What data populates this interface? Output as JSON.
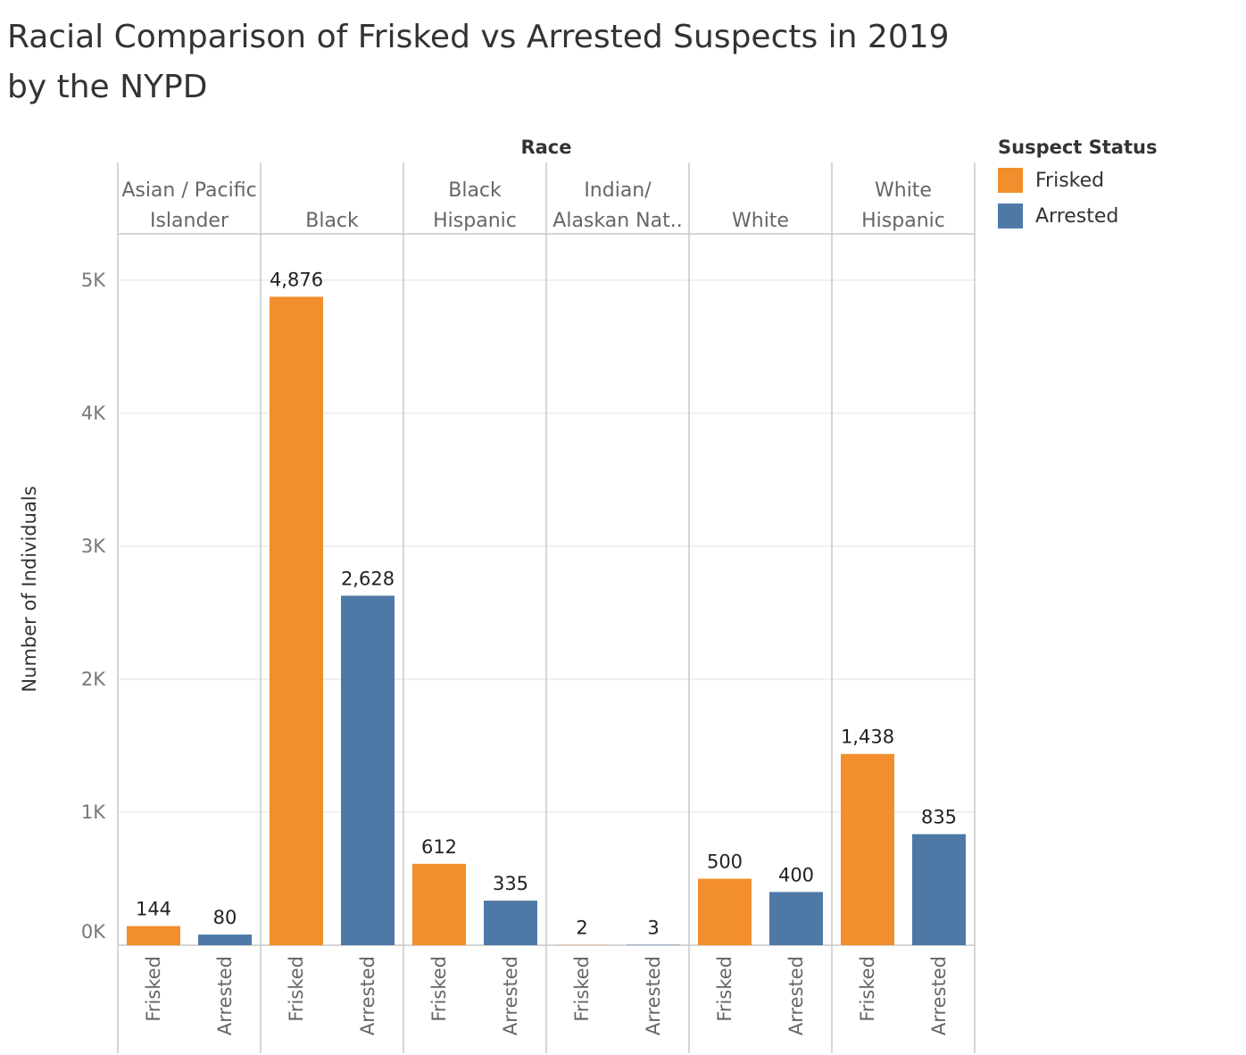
{
  "title": "Racial Comparison of Frisked vs Arrested Suspects  in 2019 by the NYPD",
  "legend": {
    "title": "Suspect Status",
    "items": [
      {
        "label": "Frisked",
        "color": "#f28e2b"
      },
      {
        "label": "Arrested",
        "color": "#4e79a7"
      }
    ]
  },
  "chart_data": {
    "type": "bar",
    "column_header": "Race",
    "ylabel": "Number of Individuals",
    "ylim": [
      0,
      5000
    ],
    "yticks": [
      0,
      1000,
      2000,
      3000,
      4000,
      5000
    ],
    "ytick_labels": [
      "0K",
      "1K",
      "2K",
      "3K",
      "4K",
      "5K"
    ],
    "grid": true,
    "legend_position": "top-right",
    "bar_labels": [
      "Frisked",
      "Arrested"
    ],
    "groups": [
      {
        "name": "Asian / Pacific Islander",
        "lines": [
          "Asian / Pacific",
          "Islander"
        ],
        "values": [
          144,
          80
        ],
        "labels": [
          "144",
          "80"
        ]
      },
      {
        "name": "Black",
        "lines": [
          "Black"
        ],
        "values": [
          4876,
          2628
        ],
        "labels": [
          "4,876",
          "2,628"
        ]
      },
      {
        "name": "Black Hispanic",
        "lines": [
          "Black",
          "Hispanic"
        ],
        "values": [
          612,
          335
        ],
        "labels": [
          "612",
          "335"
        ]
      },
      {
        "name": "Indian/ Alaskan Nat..",
        "lines": [
          "Indian/",
          "Alaskan Nat.."
        ],
        "values": [
          2,
          3
        ],
        "labels": [
          "2",
          "3"
        ]
      },
      {
        "name": "White",
        "lines": [
          "White"
        ],
        "values": [
          500,
          400
        ],
        "labels": [
          "500",
          "400"
        ]
      },
      {
        "name": "White Hispanic",
        "lines": [
          "White",
          "Hispanic"
        ],
        "values": [
          1438,
          835
        ],
        "labels": [
          "1,438",
          "835"
        ]
      }
    ],
    "colors": {
      "Frisked": "#f28e2b",
      "Arrested": "#4e79a7"
    }
  }
}
